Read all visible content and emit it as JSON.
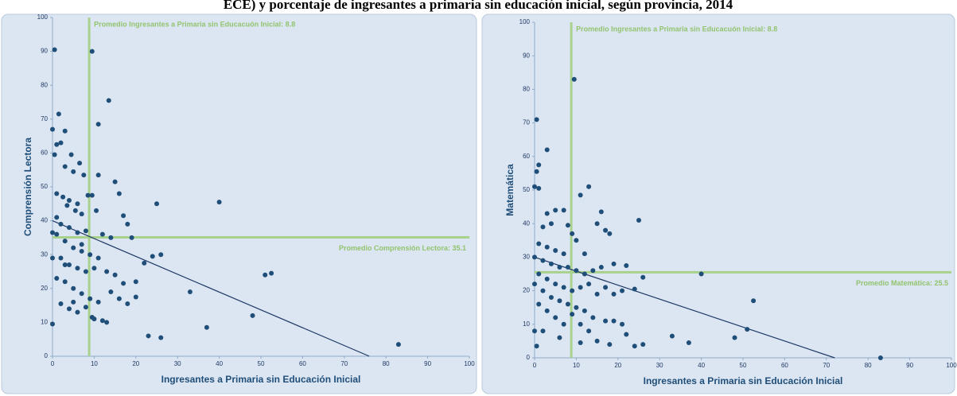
{
  "title": "ECE) y porcentaje de ingresantes a primaria sin educación inicial, según provincia, 2014",
  "chart_data": [
    {
      "type": "scatter",
      "xlabel": "Ingresantes a Primaria sin Educación Inicial",
      "ylabel": "Comprensión Lectora",
      "color": "#1f4e79",
      "xlim": [
        0,
        100
      ],
      "ylim": [
        0,
        100
      ],
      "xticks": [
        0,
        10,
        20,
        30,
        40,
        50,
        60,
        70,
        80,
        90,
        100
      ],
      "yticks": [
        0,
        10,
        20,
        30,
        40,
        50,
        60,
        70,
        80,
        90,
        100
      ],
      "avg_x": 8.8,
      "avg_x_label": "Promedio Ingresantes a Primaria sin Educacuón Inicial: 8.8",
      "avg_y": 35.1,
      "avg_y_label": "Promedio Comprensión Lectora: 35.1",
      "avg_color": "#a9d18e",
      "trend": {
        "x": [
          0,
          76
        ],
        "y": [
          40,
          0
        ]
      },
      "x": [
        0.5,
        9.5,
        13.5,
        11,
        1.5,
        0,
        3,
        1,
        2,
        4.5,
        0.5,
        3,
        6.5,
        5,
        7.5,
        11,
        15,
        1,
        2.5,
        4,
        6,
        8.5,
        9.5,
        16,
        3.5,
        5.5,
        7,
        10.5,
        17,
        18,
        25,
        40,
        1,
        2,
        4,
        6,
        8,
        0,
        12,
        14,
        19,
        3,
        5,
        7,
        9,
        11,
        2,
        0,
        4,
        6,
        8,
        10,
        13,
        15,
        17,
        20,
        22,
        24,
        26,
        1,
        3,
        5,
        7,
        9,
        11,
        14,
        16,
        18,
        20,
        2,
        4,
        6,
        8,
        10,
        12,
        13,
        0,
        33,
        51,
        52.5,
        23,
        26,
        37,
        48,
        83,
        9.5,
        5,
        3,
        1,
        7
      ],
      "values": [
        90.5,
        90,
        75.5,
        68.5,
        71.5,
        67,
        66.5,
        62.5,
        63,
        59.5,
        59.5,
        56,
        57,
        54.5,
        53.5,
        53.5,
        51.5,
        48,
        47,
        46,
        45,
        47.5,
        47.5,
        48,
        44.5,
        43,
        42,
        43,
        41.5,
        39,
        45,
        45.5,
        41,
        39,
        38,
        36.5,
        37,
        36.5,
        36,
        35,
        35,
        34,
        32,
        31,
        30,
        29,
        29,
        29,
        27,
        26,
        25,
        26,
        25,
        24,
        21.5,
        22,
        27.5,
        29.5,
        30,
        23,
        22,
        20,
        18.5,
        17,
        16,
        19,
        17,
        15.5,
        17.5,
        15.5,
        14,
        13,
        14.5,
        11,
        10.5,
        10,
        9.5,
        19,
        24,
        24.5,
        6,
        5.5,
        8.5,
        12,
        3.5,
        11.5,
        16,
        27,
        36,
        33
      ]
    },
    {
      "type": "scatter",
      "xlabel": "Ingresantes a Primaria sin Educación Inicial",
      "ylabel": "Matemática",
      "color": "#1f4e79",
      "xlim": [
        0,
        100
      ],
      "ylim": [
        0,
        100
      ],
      "xticks": [
        0,
        10,
        20,
        30,
        40,
        50,
        60,
        70,
        80,
        90,
        100
      ],
      "yticks": [
        0,
        10,
        20,
        30,
        40,
        50,
        60,
        70,
        80,
        90,
        100
      ],
      "avg_x": 8.8,
      "avg_x_label": "Promedio Ingresantes a Primaria sin Educacuón Inicial: 8.8",
      "avg_y": 25.5,
      "avg_y_label": "Promedio Matemática: 25.5",
      "avg_color": "#a9d18e",
      "trend": {
        "x": [
          0,
          72
        ],
        "y": [
          30,
          0
        ]
      },
      "x": [
        9.5,
        0.5,
        3,
        1,
        0.5,
        0,
        1,
        13,
        11,
        25,
        5,
        3,
        7,
        4,
        2,
        8,
        16,
        17,
        18,
        15,
        9,
        10,
        1,
        3,
        5,
        7,
        12,
        0,
        2,
        4,
        6,
        8,
        10,
        12,
        14,
        16,
        19,
        22,
        1,
        3,
        5,
        7,
        9,
        11,
        13,
        15,
        17,
        19,
        21,
        24,
        26,
        0,
        2,
        4,
        6,
        8,
        10,
        12,
        14,
        17,
        19,
        21,
        1,
        3,
        5,
        7,
        9,
        11,
        13,
        0,
        2,
        15,
        18,
        24,
        26,
        33,
        37,
        40,
        48,
        51,
        52.5,
        83,
        0.5,
        6,
        22,
        11
      ],
      "values": [
        83,
        71,
        62,
        57.5,
        55.5,
        51,
        50.5,
        51,
        48.5,
        41,
        44,
        43,
        44,
        40,
        39,
        39.5,
        43.5,
        38,
        37,
        40,
        37,
        35,
        34,
        33,
        32,
        31,
        31,
        30,
        29,
        28,
        27,
        27,
        26,
        25,
        26,
        27,
        28,
        27.5,
        25,
        23.5,
        22,
        21,
        20,
        21,
        22,
        19,
        21,
        19,
        20,
        20.5,
        24,
        22,
        20,
        18,
        17,
        16,
        15,
        14,
        12,
        11,
        11,
        10,
        16,
        14,
        12,
        10,
        13,
        10,
        8,
        8,
        8,
        5,
        4,
        3.5,
        4,
        6.5,
        4.5,
        25,
        6,
        8.5,
        17,
        0,
        3.5,
        6,
        7,
        4.5
      ]
    }
  ]
}
